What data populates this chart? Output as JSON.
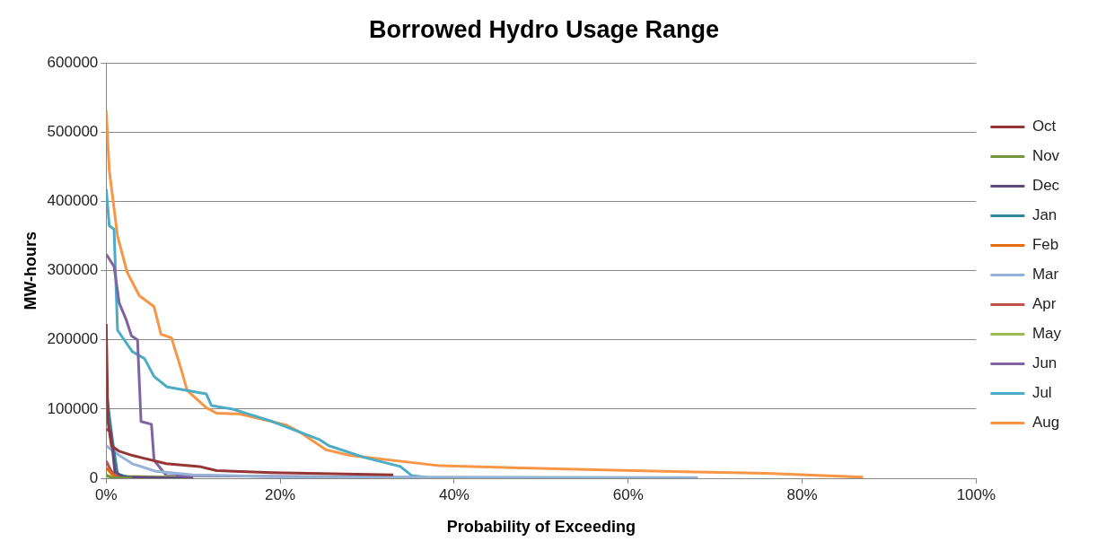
{
  "chart_data": {
    "type": "line",
    "title": "Borrowed Hydro Usage Range",
    "xlabel": "Probability of Exceeding",
    "ylabel": "MW-hours",
    "xlim": [
      0,
      100
    ],
    "xticks": [
      {
        "value": 0,
        "label": "0%"
      },
      {
        "value": 20,
        "label": "20%"
      },
      {
        "value": 40,
        "label": "40%"
      },
      {
        "value": 60,
        "label": "60%"
      },
      {
        "value": 80,
        "label": "80%"
      },
      {
        "value": 100,
        "label": "100%"
      }
    ],
    "ylim": [
      0,
      600000
    ],
    "yticks": [
      0,
      100000,
      200000,
      300000,
      400000,
      500000,
      600000
    ],
    "grid": "y",
    "legend": "right",
    "marker": "none",
    "line_style": "solid",
    "series": [
      {
        "name": "Oct",
        "color": "#943634",
        "x": [
          0,
          0.2,
          0.6,
          1.5,
          3,
          4.6,
          6.9,
          10.7,
          12.7,
          19,
          33
        ],
        "values": [
          223000,
          82000,
          47000,
          39000,
          33000,
          28000,
          21000,
          17000,
          11000,
          8000,
          5000
        ]
      },
      {
        "name": "Nov",
        "color": "#77933c",
        "x": [
          0,
          0.5,
          3
        ],
        "values": [
          5000,
          1000,
          0
        ]
      },
      {
        "name": "Dec",
        "color": "#5f497a",
        "x": [
          0,
          0.5,
          1,
          2,
          10
        ],
        "values": [
          71000,
          68000,
          9000,
          2000,
          0
        ]
      },
      {
        "name": "Jan",
        "color": "#31859c",
        "x": [
          0,
          0.7,
          1.3,
          3
        ],
        "values": [
          127000,
          56000,
          6000,
          0
        ]
      },
      {
        "name": "Feb",
        "color": "#e46c0a",
        "x": [
          0,
          0.5,
          1,
          2
        ],
        "values": [
          15000,
          8000,
          2000,
          0
        ]
      },
      {
        "name": "Mar",
        "color": "#95b3d7",
        "x": [
          0,
          1.5,
          3,
          5.7,
          10,
          20,
          68
        ],
        "values": [
          47000,
          33000,
          21000,
          10000,
          5000,
          2000,
          1000
        ]
      },
      {
        "name": "Apr",
        "color": "#c0504d",
        "x": [
          0,
          0.5,
          1,
          2
        ],
        "values": [
          25000,
          12000,
          4000,
          0
        ]
      },
      {
        "name": "May",
        "color": "#9bbb59",
        "x": [
          0,
          8
        ],
        "values": [
          3000,
          2000
        ]
      },
      {
        "name": "Jun",
        "color": "#8064a2",
        "x": [
          0,
          0.9,
          1.5,
          2.3,
          2.9,
          3.6,
          4,
          5.2,
          5.5,
          6.9,
          36
        ],
        "values": [
          324000,
          306000,
          253000,
          229000,
          206000,
          200000,
          82000,
          78000,
          26000,
          4000,
          1000
        ]
      },
      {
        "name": "Jul",
        "color": "#4bacc6",
        "x": [
          0,
          0.35,
          0.9,
          1.3,
          3,
          4.4,
          5.5,
          7,
          9.2,
          11.5,
          12.1,
          14.5,
          19.1,
          22.2,
          24.5,
          25.6,
          29.7,
          33.8,
          35.1,
          37
        ],
        "values": [
          418000,
          365000,
          360000,
          214000,
          183000,
          173000,
          147000,
          132000,
          127000,
          122000,
          105000,
          100000,
          82000,
          67000,
          56000,
          47000,
          30000,
          17000,
          4000,
          1000
        ]
      },
      {
        "name": "Aug",
        "color": "#f79646",
        "x": [
          0,
          0.35,
          1.3,
          2.4,
          3.8,
          5.5,
          6.3,
          7.5,
          8.6,
          9.3,
          11.5,
          12.7,
          15.3,
          20.7,
          22.2,
          25.3,
          28,
          38.4,
          47.7,
          60.5,
          75.9,
          87
        ],
        "values": [
          532000,
          445000,
          350000,
          298000,
          264000,
          248000,
          208000,
          203000,
          158000,
          127000,
          102000,
          94000,
          93000,
          77000,
          67000,
          41000,
          33000,
          18000,
          15000,
          11000,
          7000,
          1500
        ]
      }
    ]
  }
}
